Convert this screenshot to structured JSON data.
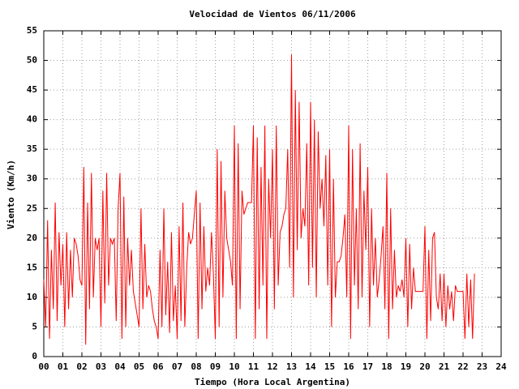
{
  "chart_data": {
    "type": "line",
    "title": "Velocidad de Vientos 06/11/2006",
    "x_label": "Tiempo (Hora Local Argentina)",
    "y_label": "Viento (Km/h)",
    "grid": true,
    "xlim": [
      0,
      24
    ],
    "ylim": [
      0,
      55
    ],
    "xticks": [
      {
        "value": 0,
        "label": "00"
      },
      {
        "value": 1,
        "label": "01"
      },
      {
        "value": 2,
        "label": "02"
      },
      {
        "value": 3,
        "label": "03"
      },
      {
        "value": 4,
        "label": "04"
      },
      {
        "value": 5,
        "label": "05"
      },
      {
        "value": 6,
        "label": "06"
      },
      {
        "value": 7,
        "label": "07"
      },
      {
        "value": 8,
        "label": "08"
      },
      {
        "value": 9,
        "label": "09"
      },
      10,
      11,
      12,
      13,
      14,
      15,
      16,
      17,
      18,
      19,
      20,
      21,
      22,
      23,
      24
    ],
    "yticks": [
      0,
      5,
      10,
      15,
      20,
      25,
      30,
      35,
      40,
      45,
      50,
      55
    ],
    "series": [
      {
        "color": "#ff0000",
        "x": [
          0,
          0.1,
          0.2,
          0.3,
          0.4,
          0.5,
          0.6,
          0.7,
          0.8,
          0.9,
          1,
          1.1,
          1.2,
          1.3,
          1.4,
          1.5,
          1.6,
          1.7,
          1.8,
          1.9,
          2,
          2.1,
          2.2,
          2.3,
          2.4,
          2.5,
          2.6,
          2.7,
          2.8,
          2.9,
          3,
          3.1,
          3.2,
          3.3,
          3.4,
          3.5,
          3.6,
          3.7,
          3.8,
          3.9,
          4,
          4.1,
          4.2,
          4.3,
          4.4,
          4.5,
          4.6,
          4.7,
          4.8,
          4.9,
          5,
          5.1,
          5.2,
          5.3,
          5.4,
          5.5,
          5.6,
          5.7,
          5.8,
          5.9,
          6,
          6.1,
          6.2,
          6.3,
          6.4,
          6.5,
          6.6,
          6.7,
          6.8,
          6.9,
          7,
          7.1,
          7.2,
          7.3,
          7.4,
          7.5,
          7.6,
          7.7,
          7.8,
          7.9,
          8,
          8.1,
          8.2,
          8.3,
          8.4,
          8.5,
          8.6,
          8.7,
          8.8,
          8.9,
          9,
          9.1,
          9.2,
          9.3,
          9.4,
          9.5,
          9.6,
          9.7,
          9.8,
          9.9,
          10,
          10.1,
          10.2,
          10.3,
          10.4,
          10.5,
          10.6,
          10.7,
          10.8,
          10.9,
          11,
          11.1,
          11.2,
          11.3,
          11.4,
          11.5,
          11.6,
          11.7,
          11.8,
          11.9,
          12,
          12.1,
          12.2,
          12.3,
          12.4,
          12.5,
          12.6,
          12.7,
          12.8,
          12.9,
          13,
          13.1,
          13.2,
          13.3,
          13.4,
          13.5,
          13.6,
          13.7,
          13.8,
          13.9,
          14,
          14.1,
          14.2,
          14.3,
          14.4,
          14.5,
          14.6,
          14.7,
          14.8,
          14.9,
          15,
          15.1,
          15.2,
          15.3,
          15.4,
          15.5,
          15.6,
          15.7,
          15.8,
          15.9,
          16,
          16.1,
          16.2,
          16.3,
          16.4,
          16.5,
          16.6,
          16.7,
          16.8,
          16.9,
          17,
          17.1,
          17.2,
          17.3,
          17.4,
          17.5,
          17.6,
          17.7,
          17.8,
          17.9,
          18,
          18.1,
          18.2,
          18.3,
          18.4,
          18.5,
          18.6,
          18.7,
          18.8,
          18.9,
          19,
          19.1,
          19.2,
          19.3,
          19.4,
          19.5,
          19.6,
          19.7,
          19.8,
          19.9,
          20,
          20.1,
          20.2,
          20.3,
          20.4,
          20.5,
          20.6,
          20.7,
          20.8,
          20.9,
          21,
          21.1,
          21.2,
          21.3,
          21.4,
          21.5,
          21.6,
          21.7,
          21.8,
          21.9,
          22,
          22.1,
          22.2,
          22.3,
          22.4,
          22.5,
          22.6
        ],
        "values": [
          13,
          5,
          23,
          3,
          18,
          8,
          26,
          6,
          21,
          12,
          19,
          5,
          21,
          8,
          18,
          10,
          20,
          19,
          17,
          13,
          12,
          32,
          2,
          26,
          8,
          31,
          10,
          20,
          18,
          20,
          5,
          28,
          9,
          31,
          12,
          20,
          19,
          20,
          6,
          25,
          31,
          3,
          27,
          5,
          20,
          12,
          18,
          11,
          9,
          7,
          5,
          25,
          8,
          19,
          10,
          12,
          11,
          8,
          6,
          5,
          3,
          18,
          5,
          25,
          7,
          16,
          4,
          21,
          6,
          12,
          3,
          22,
          6,
          26,
          5,
          15,
          21,
          19,
          20,
          24,
          28,
          3,
          26,
          8,
          22,
          11,
          15,
          12,
          21,
          14,
          3,
          35,
          5,
          33,
          10,
          28,
          20,
          18,
          16,
          12,
          39,
          3,
          36,
          8,
          28,
          24,
          25,
          26,
          26,
          26,
          39,
          3,
          37,
          8,
          32,
          12,
          39,
          3,
          30,
          20,
          35,
          8,
          39,
          12,
          21,
          22,
          24,
          25,
          35,
          15,
          51,
          10,
          45,
          18,
          43,
          20,
          25,
          22,
          36,
          12,
          43,
          15,
          40,
          10,
          38,
          25,
          30,
          22,
          34,
          12,
          35,
          5,
          30,
          10,
          16,
          16,
          17,
          20,
          24,
          10,
          39,
          3,
          35,
          12,
          25,
          8,
          36,
          10,
          28,
          18,
          32,
          5,
          25,
          12,
          20,
          10,
          13,
          17,
          22,
          8,
          31,
          3,
          25,
          8,
          18,
          10,
          12,
          11,
          13,
          10,
          20,
          5,
          19,
          8,
          15,
          11,
          11,
          11,
          11,
          11,
          22,
          3,
          18,
          6,
          20,
          21,
          10,
          8,
          14,
          6,
          14,
          5,
          12,
          8,
          11,
          6,
          12,
          11,
          11,
          11,
          11,
          3,
          14,
          5,
          13,
          3,
          14
        ]
      }
    ]
  }
}
